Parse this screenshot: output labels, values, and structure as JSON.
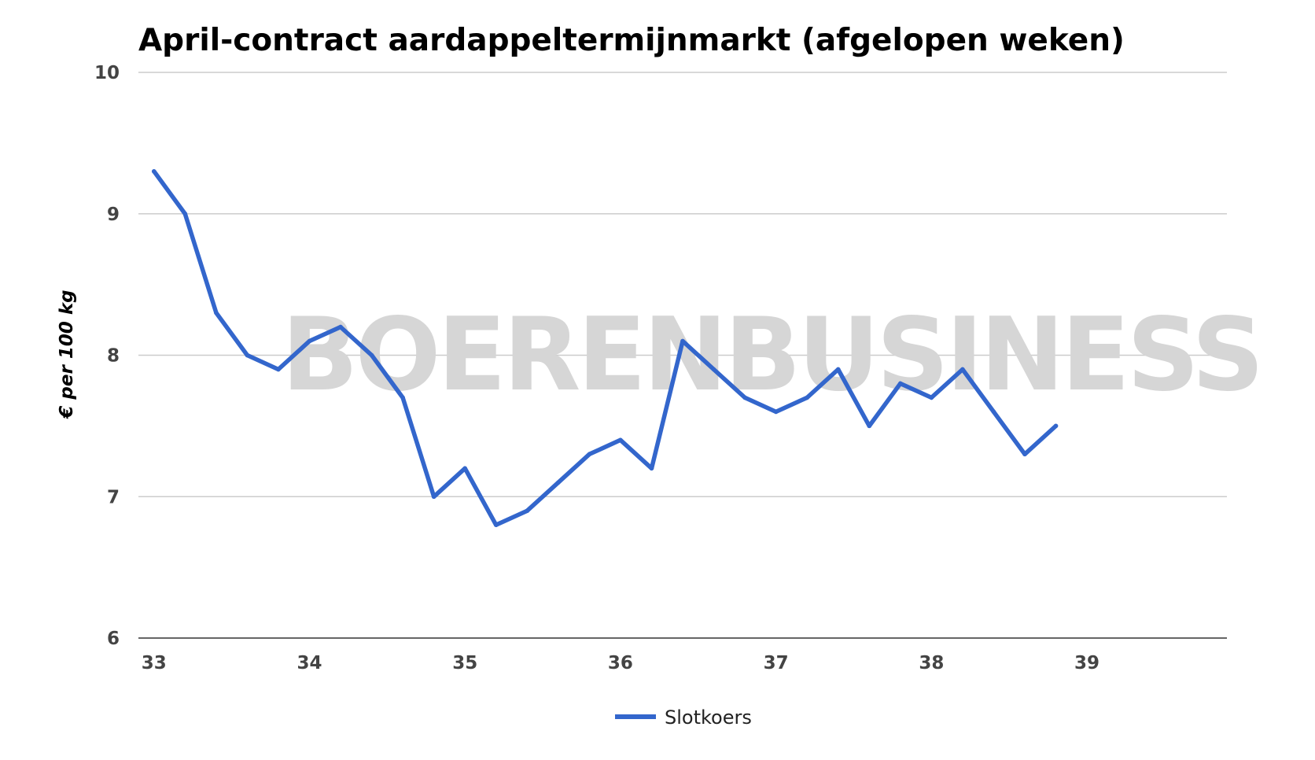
{
  "chart_data": {
    "type": "line",
    "title": "April-contract aardappeltermijnmarkt (afgelopen weken)",
    "xlabel": "",
    "ylabel": "€ per 100 kg",
    "watermark": "BOERENBUSINESS",
    "xlim": [
      32.9,
      39.9
    ],
    "ylim": [
      6,
      10
    ],
    "x_ticks": [
      "33",
      "34",
      "35",
      "36",
      "37",
      "38",
      "39"
    ],
    "y_ticks": [
      "10",
      "9",
      "8",
      "7",
      "6"
    ],
    "grid": true,
    "legend_position": "bottom",
    "series": [
      {
        "name": "Slotkoers",
        "color": "#3366cc",
        "points": [
          {
            "x": 33.0,
            "y": 9.3
          },
          {
            "x": 33.2,
            "y": 9.0
          },
          {
            "x": 33.4,
            "y": 8.3
          },
          {
            "x": 33.6,
            "y": 8.0
          },
          {
            "x": 33.8,
            "y": 7.9
          },
          {
            "x": 34.0,
            "y": 8.1
          },
          {
            "x": 34.2,
            "y": 8.2
          },
          {
            "x": 34.4,
            "y": 8.0
          },
          {
            "x": 34.6,
            "y": 7.7
          },
          {
            "x": 34.8,
            "y": 7.0
          },
          {
            "x": 35.0,
            "y": 7.2
          },
          {
            "x": 35.2,
            "y": 6.8
          },
          {
            "x": 35.4,
            "y": 6.9
          },
          {
            "x": 35.6,
            "y": 7.1
          },
          {
            "x": 35.8,
            "y": 7.3
          },
          {
            "x": 36.0,
            "y": 7.4
          },
          {
            "x": 36.2,
            "y": 7.2
          },
          {
            "x": 36.4,
            "y": 8.1
          },
          {
            "x": 36.6,
            "y": 7.9
          },
          {
            "x": 36.8,
            "y": 7.7
          },
          {
            "x": 37.0,
            "y": 7.6
          },
          {
            "x": 37.2,
            "y": 7.7
          },
          {
            "x": 37.4,
            "y": 7.9
          },
          {
            "x": 37.6,
            "y": 7.5
          },
          {
            "x": 37.8,
            "y": 7.8
          },
          {
            "x": 38.0,
            "y": 7.7
          },
          {
            "x": 38.2,
            "y": 7.9
          },
          {
            "x": 38.4,
            "y": 7.6
          },
          {
            "x": 38.6,
            "y": 7.3
          },
          {
            "x": 38.8,
            "y": 7.5
          }
        ]
      }
    ]
  }
}
